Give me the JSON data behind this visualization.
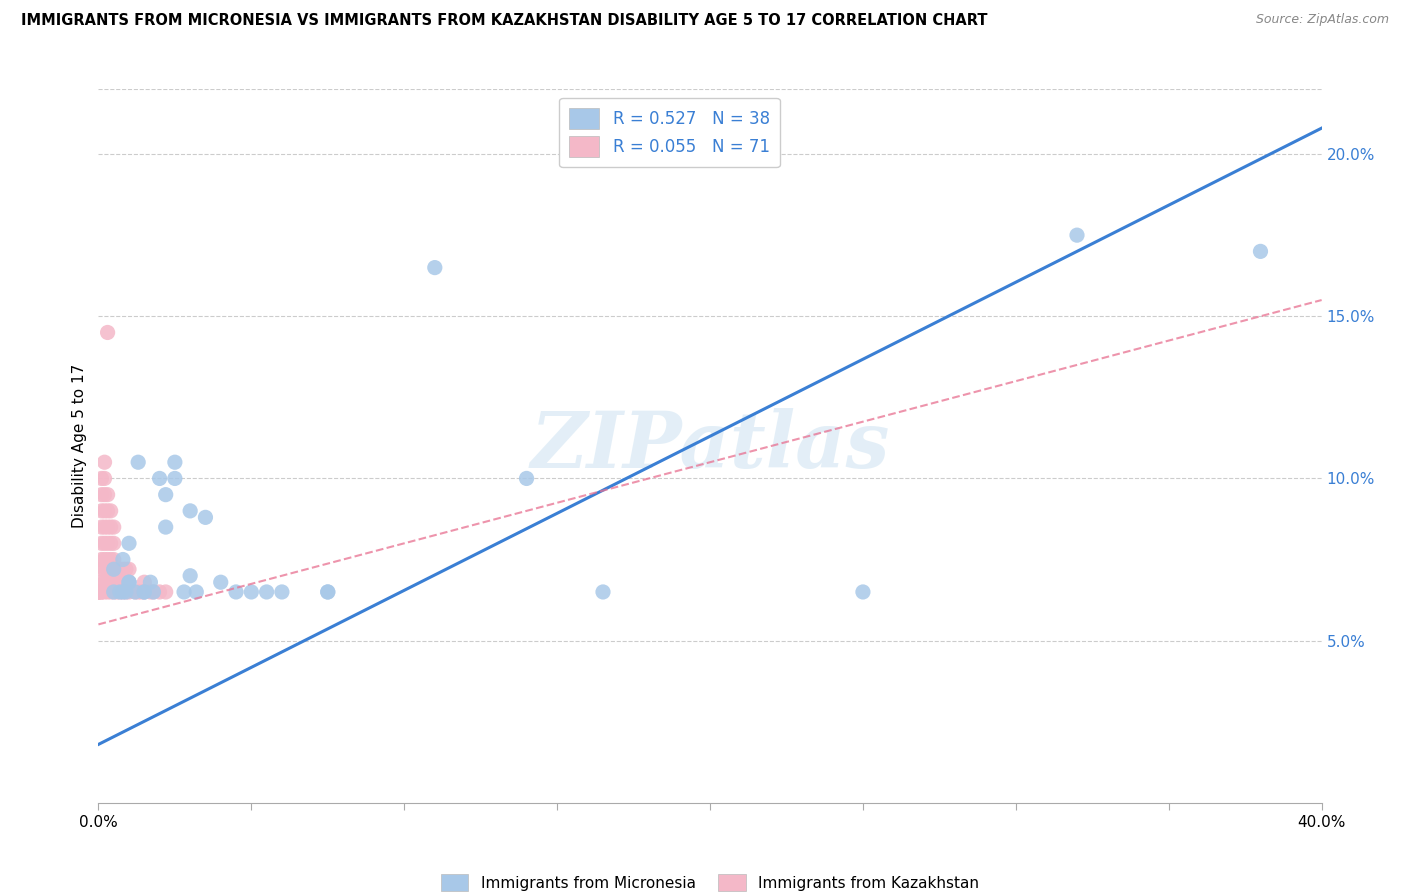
{
  "title": "IMMIGRANTS FROM MICRONESIA VS IMMIGRANTS FROM KAZAKHSTAN DISABILITY AGE 5 TO 17 CORRELATION CHART",
  "source": "Source: ZipAtlas.com",
  "ylabel": "Disability Age 5 to 17",
  "xlim": [
    0.0,
    0.4
  ],
  "ylim": [
    0.0,
    0.22
  ],
  "xticks": [
    0.0,
    0.05,
    0.1,
    0.15,
    0.2,
    0.25,
    0.3,
    0.35,
    0.4
  ],
  "xticklabels": [
    "0.0%",
    "",
    "",
    "",
    "",
    "",
    "",
    "",
    "40.0%"
  ],
  "yticks_right": [
    0.05,
    0.1,
    0.15,
    0.2
  ],
  "ytick_labels_right": [
    "5.0%",
    "10.0%",
    "15.0%",
    "20.0%"
  ],
  "blue_color": "#a8c8e8",
  "pink_color": "#f4b8c8",
  "blue_line_color": "#3a7fd4",
  "pink_line_color": "#e87090",
  "legend_R_blue": "0.527",
  "legend_N_blue": "38",
  "legend_R_pink": "0.055",
  "legend_N_pink": "71",
  "legend_label_blue": "Immigrants from Micronesia",
  "legend_label_pink": "Immigrants from Kazakhstan",
  "watermark": "ZIPatlas",
  "blue_line_x": [
    0.0,
    0.4
  ],
  "blue_line_y": [
    0.018,
    0.208
  ],
  "pink_line_x": [
    0.0,
    0.4
  ],
  "pink_line_y": [
    0.055,
    0.155
  ],
  "blue_scatter_x": [
    0.005,
    0.005,
    0.007,
    0.008,
    0.008,
    0.009,
    0.01,
    0.01,
    0.01,
    0.012,
    0.013,
    0.015,
    0.015,
    0.017,
    0.018,
    0.02,
    0.022,
    0.022,
    0.025,
    0.025,
    0.028,
    0.03,
    0.03,
    0.032,
    0.035,
    0.04,
    0.045,
    0.05,
    0.055,
    0.06,
    0.075,
    0.075,
    0.11,
    0.14,
    0.165,
    0.25,
    0.32,
    0.38
  ],
  "blue_scatter_y": [
    0.065,
    0.072,
    0.065,
    0.065,
    0.075,
    0.065,
    0.068,
    0.08,
    0.068,
    0.065,
    0.105,
    0.065,
    0.065,
    0.068,
    0.065,
    0.1,
    0.095,
    0.085,
    0.1,
    0.105,
    0.065,
    0.09,
    0.07,
    0.065,
    0.088,
    0.068,
    0.065,
    0.065,
    0.065,
    0.065,
    0.065,
    0.065,
    0.165,
    0.1,
    0.065,
    0.065,
    0.175,
    0.17
  ],
  "pink_scatter_x": [
    0.0,
    0.0,
    0.0,
    0.0,
    0.001,
    0.001,
    0.001,
    0.001,
    0.001,
    0.001,
    0.001,
    0.001,
    0.001,
    0.001,
    0.001,
    0.002,
    0.002,
    0.002,
    0.002,
    0.002,
    0.002,
    0.002,
    0.002,
    0.002,
    0.002,
    0.003,
    0.003,
    0.003,
    0.003,
    0.003,
    0.003,
    0.003,
    0.003,
    0.004,
    0.004,
    0.004,
    0.004,
    0.004,
    0.004,
    0.004,
    0.005,
    0.005,
    0.005,
    0.005,
    0.005,
    0.005,
    0.006,
    0.006,
    0.006,
    0.007,
    0.007,
    0.007,
    0.008,
    0.008,
    0.008,
    0.009,
    0.009,
    0.009,
    0.01,
    0.01,
    0.01,
    0.012,
    0.013,
    0.014,
    0.015,
    0.015,
    0.017,
    0.018,
    0.02,
    0.022,
    0.003
  ],
  "pink_scatter_y": [
    0.065,
    0.065,
    0.065,
    0.065,
    0.065,
    0.065,
    0.065,
    0.068,
    0.072,
    0.075,
    0.08,
    0.085,
    0.09,
    0.095,
    0.1,
    0.065,
    0.068,
    0.072,
    0.075,
    0.08,
    0.085,
    0.09,
    0.095,
    0.1,
    0.105,
    0.065,
    0.068,
    0.072,
    0.075,
    0.08,
    0.085,
    0.09,
    0.095,
    0.065,
    0.068,
    0.072,
    0.075,
    0.08,
    0.085,
    0.09,
    0.065,
    0.068,
    0.072,
    0.075,
    0.08,
    0.085,
    0.065,
    0.068,
    0.072,
    0.065,
    0.068,
    0.072,
    0.065,
    0.068,
    0.072,
    0.065,
    0.068,
    0.072,
    0.065,
    0.068,
    0.072,
    0.065,
    0.065,
    0.065,
    0.065,
    0.068,
    0.065,
    0.065,
    0.065,
    0.065,
    0.145
  ]
}
